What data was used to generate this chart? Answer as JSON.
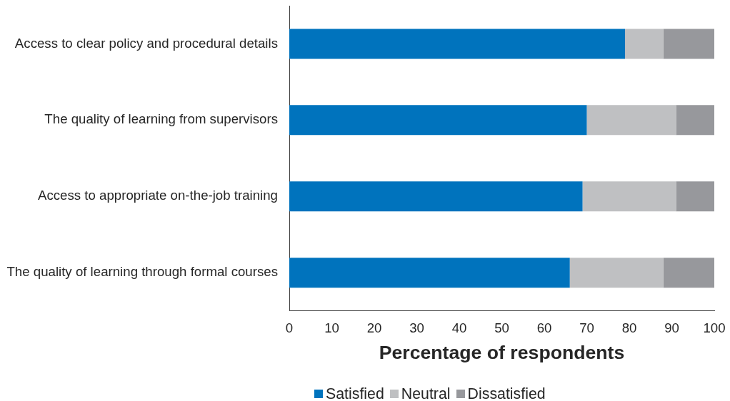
{
  "chart_data": {
    "type": "bar",
    "orientation": "horizontal",
    "stacked": true,
    "categories": [
      "Access to clear policy and procedural details",
      "The quality of learning from supervisors",
      "Access to appropriate on-the-job training",
      "The quality of learning through formal courses"
    ],
    "series": [
      {
        "name": "Satisfied",
        "color": "#0073bd",
        "values": [
          79,
          70,
          69,
          66
        ]
      },
      {
        "name": "Neutral",
        "color": "#bfc0c2",
        "values": [
          9,
          21,
          22,
          22
        ]
      },
      {
        "name": "Dissatisfied",
        "color": "#97989c",
        "values": [
          12,
          9,
          9,
          12
        ]
      }
    ],
    "xlim": [
      0,
      100
    ],
    "xticks": [
      0,
      10,
      20,
      30,
      40,
      50,
      60,
      70,
      80,
      90,
      100
    ],
    "xlabel": "Percentage of respondents",
    "legend": "bottom"
  }
}
